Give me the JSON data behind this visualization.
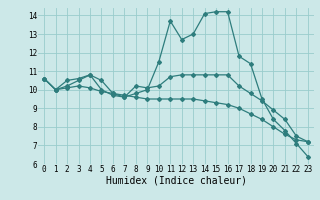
{
  "title": "",
  "xlabel": "Humidex (Indice chaleur)",
  "xlim_min": -0.5,
  "xlim_max": 23.5,
  "ylim_min": 6,
  "ylim_max": 14.4,
  "yticks": [
    6,
    7,
    8,
    9,
    10,
    11,
    12,
    13,
    14
  ],
  "xticks": [
    0,
    1,
    2,
    3,
    4,
    5,
    6,
    7,
    8,
    9,
    10,
    11,
    12,
    13,
    14,
    15,
    16,
    17,
    18,
    19,
    20,
    21,
    22,
    23
  ],
  "bg_color": "#cce8e8",
  "plot_bg_color": "#cce8e8",
  "line_color": "#2e7d7d",
  "grid_color": "#99cccc",
  "series1_x": [
    0,
    1,
    2,
    3,
    4,
    5,
    6,
    7,
    8,
    9,
    10,
    11,
    12,
    13,
    14,
    15,
    16,
    17,
    18,
    19,
    20,
    21,
    22,
    23
  ],
  "series1_y": [
    10.6,
    10.0,
    10.5,
    10.6,
    10.8,
    10.0,
    9.7,
    9.6,
    9.8,
    10.0,
    11.5,
    13.7,
    12.7,
    13.0,
    14.1,
    14.2,
    14.2,
    11.8,
    11.4,
    9.5,
    8.4,
    7.8,
    7.1,
    6.4
  ],
  "series2_x": [
    0,
    1,
    2,
    3,
    4,
    5,
    6,
    7,
    8,
    9,
    10,
    11,
    12,
    13,
    14,
    15,
    16,
    17,
    18,
    19,
    20,
    21,
    22,
    23
  ],
  "series2_y": [
    10.6,
    10.0,
    10.2,
    10.5,
    10.8,
    10.5,
    9.8,
    9.6,
    10.2,
    10.1,
    10.2,
    10.7,
    10.8,
    10.8,
    10.8,
    10.8,
    10.8,
    10.2,
    9.8,
    9.4,
    8.9,
    8.4,
    7.5,
    7.2
  ],
  "series3_x": [
    0,
    1,
    2,
    3,
    4,
    5,
    6,
    7,
    8,
    9,
    10,
    11,
    12,
    13,
    14,
    15,
    16,
    17,
    18,
    19,
    20,
    21,
    22,
    23
  ],
  "series3_y": [
    10.6,
    10.0,
    10.1,
    10.2,
    10.1,
    9.9,
    9.8,
    9.7,
    9.6,
    9.5,
    9.5,
    9.5,
    9.5,
    9.5,
    9.4,
    9.3,
    9.2,
    9.0,
    8.7,
    8.4,
    8.0,
    7.6,
    7.3,
    7.2
  ],
  "tick_fontsize": 5.5,
  "xlabel_fontsize": 7,
  "linewidth": 0.9,
  "markersize": 2.0
}
